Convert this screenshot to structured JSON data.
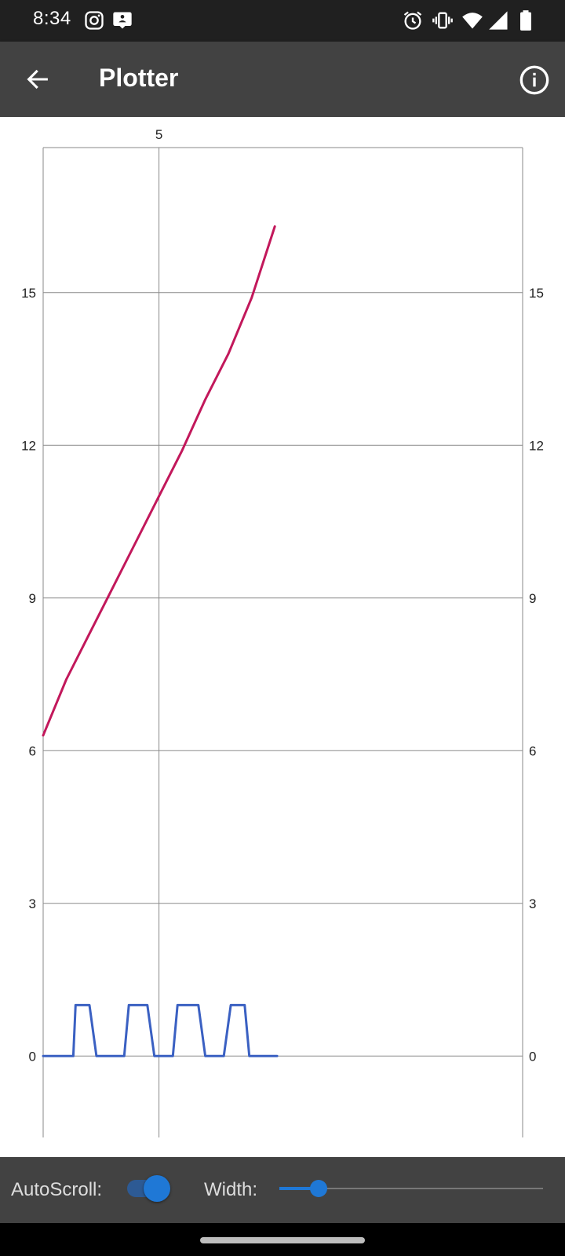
{
  "status_bar": {
    "time": "8:34",
    "left_icons": [
      "instagram-icon",
      "messenger-icon"
    ],
    "right_icons": [
      "alarm-icon",
      "vibrate-icon",
      "wifi-icon",
      "cellular-signal-icon",
      "battery-icon"
    ]
  },
  "app_bar": {
    "title": "Plotter",
    "back_icon": "arrow-back-icon",
    "info_icon": "info-icon"
  },
  "chart_data": {
    "type": "line",
    "grid": true,
    "x_ticks": [
      5
    ],
    "y_ticks": [
      0,
      3,
      6,
      9,
      12,
      15
    ],
    "xlim": [
      0,
      20.7
    ],
    "ylim": [
      -1.6,
      17.85
    ],
    "series": [
      {
        "color": "#c2185b",
        "x": [
          0,
          1,
          2,
          3,
          4,
          5,
          6,
          7,
          8,
          9,
          10
        ],
        "y": [
          6.3,
          7.4,
          8.3,
          9.2,
          10.1,
          11.0,
          11.9,
          12.9,
          13.8,
          14.9,
          16.3
        ]
      },
      {
        "color": "#3a60c2",
        "x": [
          0,
          1.3,
          1.4,
          2.0,
          2.3,
          3.5,
          3.7,
          4.5,
          4.8,
          5.6,
          5.8,
          6.7,
          7.0,
          7.8,
          8.1,
          8.7,
          8.9,
          10.1
        ],
        "y": [
          0,
          0,
          1,
          1,
          0,
          0,
          1,
          1,
          0,
          0,
          1,
          1,
          0,
          0,
          1,
          1,
          0,
          0
        ]
      }
    ]
  },
  "bottom_bar": {
    "autoscroll_label": "AutoScroll:",
    "autoscroll_on": true,
    "width_label": "Width:",
    "width_fraction": 0.15,
    "accent_color": "#1f78d6"
  }
}
